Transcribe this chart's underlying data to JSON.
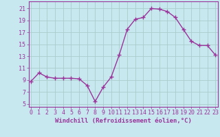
{
  "x": [
    0,
    1,
    2,
    3,
    4,
    5,
    6,
    7,
    8,
    9,
    10,
    11,
    12,
    13,
    14,
    15,
    16,
    17,
    18,
    19,
    20,
    21,
    22,
    23
  ],
  "y": [
    8.8,
    10.2,
    9.5,
    9.3,
    9.3,
    9.3,
    9.2,
    8.1,
    5.4,
    7.8,
    9.5,
    13.2,
    17.5,
    19.2,
    19.5,
    21.0,
    20.9,
    20.5,
    19.5,
    17.5,
    15.5,
    14.8,
    14.8,
    13.2
  ],
  "line_color": "#993399",
  "marker": "+",
  "marker_size": 4,
  "linewidth": 1.0,
  "background_color": "#c8e8f0",
  "grid_color": "#aacccc",
  "xlabel": "Windchill (Refroidissement éolien,°C)",
  "xlabel_fontsize": 6.5,
  "ytick_labels": [
    "5",
    "7",
    "9",
    "11",
    "13",
    "15",
    "17",
    "19",
    "21"
  ],
  "ytick_values": [
    5,
    7,
    9,
    11,
    13,
    15,
    17,
    19,
    21
  ],
  "xtick_values": [
    0,
    1,
    2,
    3,
    4,
    5,
    6,
    7,
    8,
    9,
    10,
    11,
    12,
    13,
    14,
    15,
    16,
    17,
    18,
    19,
    20,
    21,
    22,
    23
  ],
  "xlim": [
    -0.3,
    23.3
  ],
  "ylim": [
    4.5,
    22.2
  ],
  "tick_fontsize": 6.0,
  "tick_color": "#993399",
  "axis_label_color": "#993399",
  "spine_color": "#993399"
}
